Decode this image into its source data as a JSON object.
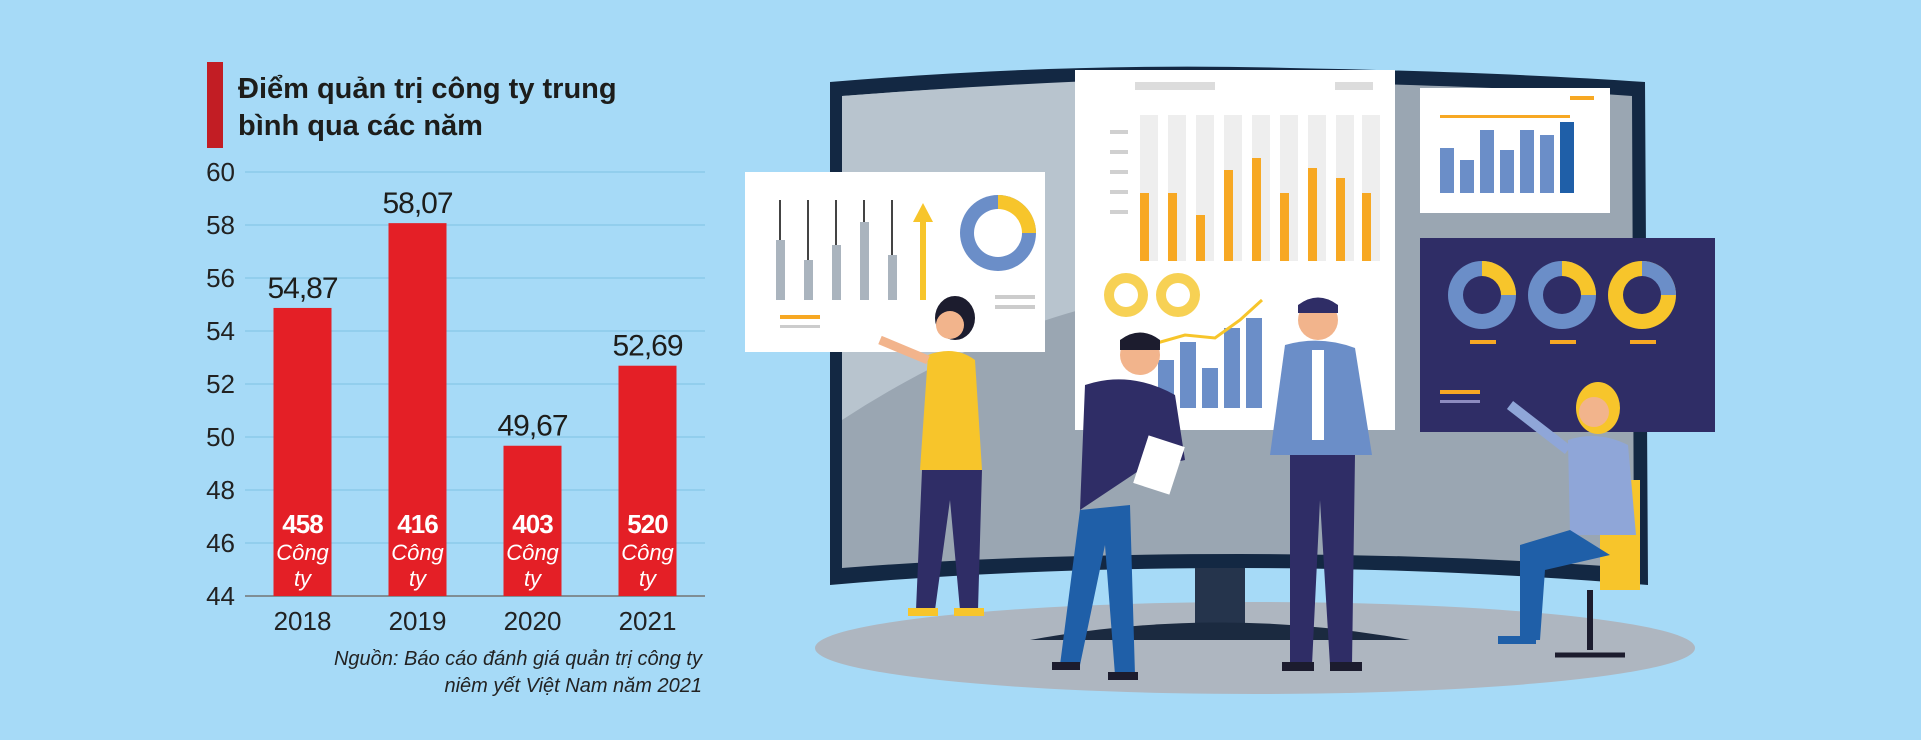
{
  "chart_data": {
    "type": "bar",
    "title": "Điểm quản trị công ty trung bình qua các năm",
    "categories": [
      "2018",
      "2019",
      "2020",
      "2021"
    ],
    "values": [
      54.87,
      58.07,
      49.67,
      52.69
    ],
    "value_labels": [
      "54,87",
      "58,07",
      "49,67",
      "52,69"
    ],
    "bar_counts": [
      "458",
      "416",
      "403",
      "520"
    ],
    "count_unit": "Công ty",
    "ylim": [
      44,
      60
    ],
    "yticks": [
      "44",
      "46",
      "48",
      "50",
      "52",
      "54",
      "56",
      "58",
      "60"
    ],
    "grid": true,
    "xlabel": "",
    "ylabel": "",
    "source_line1": "Nguồn: Báo cáo đánh giá quản trị công ty",
    "source_line2": "niêm yết Việt Nam năm 2021",
    "colors": {
      "bar": "#e41f26",
      "background": "#a6daf7",
      "accent_strip": "#c21d24",
      "text": "#222222"
    }
  },
  "illustration": {
    "icon": "business-team-dashboard-illustration"
  }
}
